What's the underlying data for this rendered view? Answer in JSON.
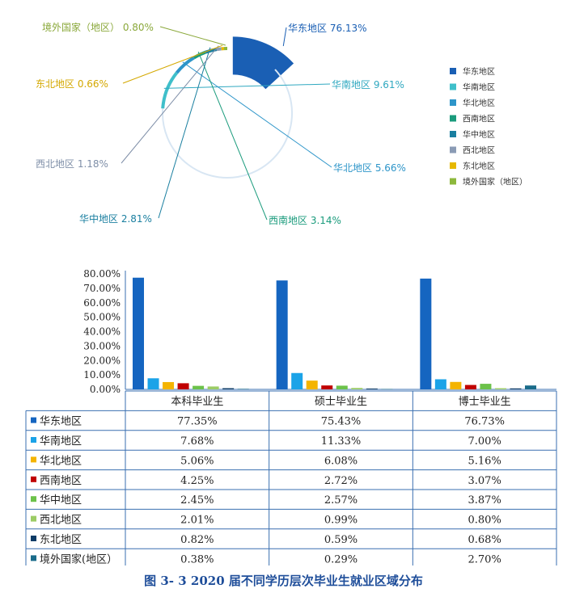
{
  "chart_data": [
    {
      "type": "pie",
      "style": "ring-with-exploded-slice",
      "legend_position": "right",
      "labels": [
        "华东地区",
        "华南地区",
        "华北地区",
        "西南地区",
        "华中地区",
        "西北地区",
        "东北地区",
        "境外国家（地区）"
      ],
      "values": [
        76.13,
        9.61,
        5.66,
        3.14,
        2.81,
        1.18,
        0.66,
        0.8
      ],
      "value_labels": [
        "76.13%",
        "9.61%",
        "5.66%",
        "3.14%",
        "2.81%",
        "1.18%",
        "0.66%",
        "0.80%"
      ],
      "colors": [
        "#1a5fb4",
        "#3fbfca",
        "#2d95c9",
        "#1a9b7c",
        "#1a7fa0",
        "#8a9bb5",
        "#e6b800",
        "#8db83c"
      ],
      "label_colors": [
        "#1a5fb4",
        "#2fa8c0",
        "#2d95c9",
        "#1a9b7c",
        "#1a7fa0",
        "#7f8fa8",
        "#d4a800",
        "#8aa83a"
      ]
    },
    {
      "type": "bar",
      "categories": [
        "本科毕业生",
        "硕士毕业生",
        "博士毕业生"
      ],
      "ylim": [
        0,
        80
      ],
      "y_ticks": [
        "0.00%",
        "10.00%",
        "20.00%",
        "30.00%",
        "40.00%",
        "50.00%",
        "60.00%",
        "70.00%",
        "80.00%"
      ],
      "grid": false,
      "legend_position": "table",
      "series": [
        {
          "name": "华东地区",
          "color": "#1565c0",
          "values": [
            77.35,
            75.43,
            76.73
          ],
          "labels": [
            "77.35%",
            "75.43%",
            "76.73%"
          ]
        },
        {
          "name": "华南地区",
          "color": "#1ba3e8",
          "values": [
            7.68,
            11.33,
            7.0
          ],
          "labels": [
            "7.68%",
            "11.33%",
            "7.00%"
          ]
        },
        {
          "name": "华北地区",
          "color": "#f4b400",
          "values": [
            5.06,
            6.08,
            5.16
          ],
          "labels": [
            "5.06%",
            "6.08%",
            "5.16%"
          ]
        },
        {
          "name": "西南地区",
          "color": "#c00000",
          "values": [
            4.25,
            2.72,
            3.07
          ],
          "labels": [
            "4.25%",
            "2.72%",
            "3.07%"
          ]
        },
        {
          "name": "华中地区",
          "color": "#6cc24a",
          "values": [
            2.45,
            2.57,
            3.87
          ],
          "labels": [
            "2.45%",
            "2.57%",
            "3.87%"
          ]
        },
        {
          "name": "西北地区",
          "color": "#9ccc65",
          "values": [
            2.01,
            0.99,
            0.8
          ],
          "labels": [
            "2.01%",
            "0.99%",
            "0.80%"
          ]
        },
        {
          "name": "东北地区",
          "color": "#0d3b66",
          "values": [
            0.82,
            0.59,
            0.68
          ],
          "labels": [
            "0.82%",
            "0.59%",
            "0.68%"
          ]
        },
        {
          "name": "境外国家(地区）",
          "color": "#1a6b8a",
          "values": [
            0.38,
            0.29,
            2.7
          ],
          "labels": [
            "0.38%",
            "0.29%",
            "2.70%"
          ]
        }
      ]
    }
  ],
  "caption": "图 3- 3    2020 届不同学历层次毕业生就业区域分布"
}
